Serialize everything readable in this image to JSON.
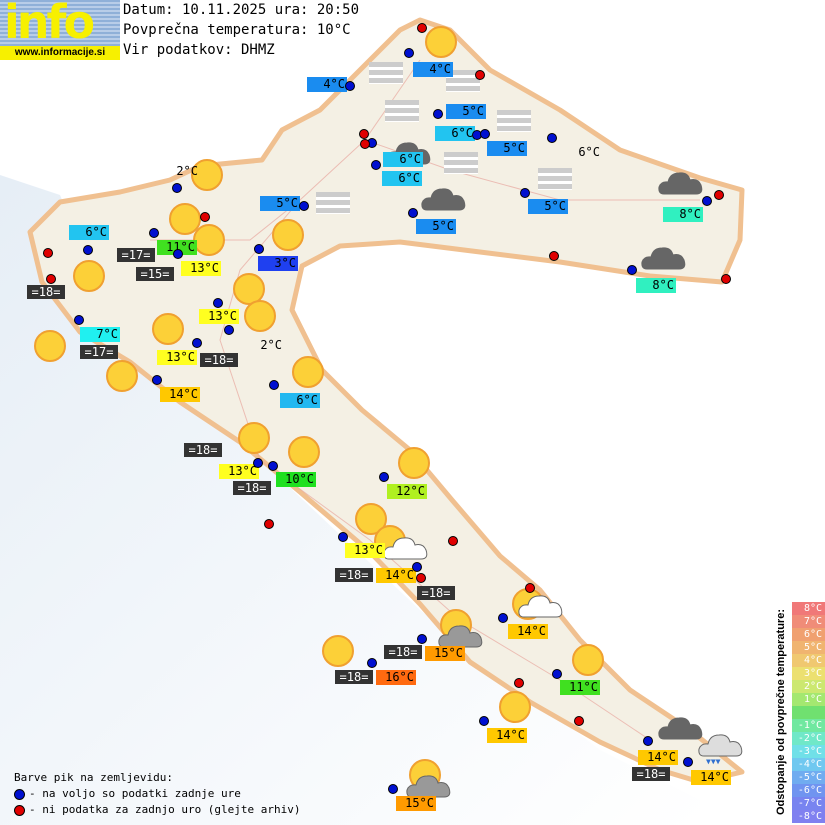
{
  "logo": {
    "text": "info",
    "url": "www.informacije.si"
  },
  "header": {
    "date_line": "Datum: 10.11.2025 ura: 20:50",
    "avg_temp_line": "Povprečna temperatura: 10°C",
    "source_line": "Vir podatkov: DHMZ"
  },
  "temperature_labels": [
    {
      "text": "4°C",
      "color": "#1a8cf0"
    },
    {
      "text": "4°C",
      "color": "#1a8cf0"
    },
    {
      "text": "5°C",
      "color": "#1a8cf0"
    },
    {
      "text": "6°C",
      "color": "#22c4f0"
    },
    {
      "text": "5°C",
      "color": "#1a8cf0"
    },
    {
      "text": "6°C",
      "color": "#22c4f0"
    },
    {
      "text": "6°C",
      "color": "#22c4f0"
    },
    {
      "text": "5°C",
      "color": "#1a8cf0"
    },
    {
      "text": "5°C",
      "color": "#1a8cf0"
    },
    {
      "text": "5°C",
      "color": "#1a8cf0"
    },
    {
      "text": "6°C",
      "color": ""
    },
    {
      "text": "8°C",
      "color": "#30f0c0"
    },
    {
      "text": "8°C",
      "color": "#30f0c0"
    },
    {
      "text": "3°C",
      "color": "#1f40f0"
    },
    {
      "text": "2°C",
      "color": ""
    },
    {
      "text": "6°C",
      "color": "#22c4f0"
    },
    {
      "text": "11°C",
      "color": "#40e020"
    },
    {
      "text": "13°C",
      "color": "#ffff20"
    },
    {
      "text": "7°C",
      "color": "#20f0f0"
    },
    {
      "text": "13°C",
      "color": "#ffff20"
    },
    {
      "text": "13°C",
      "color": "#ffff20"
    },
    {
      "text": "2°C",
      "color": ""
    },
    {
      "text": "14°C",
      "color": "#ffc800"
    },
    {
      "text": "6°C",
      "color": "#22b8f0"
    },
    {
      "text": "13°C",
      "color": "#ffff20"
    },
    {
      "text": "10°C",
      "color": "#20e020"
    },
    {
      "text": "12°C",
      "color": "#b0f020"
    },
    {
      "text": "13°C",
      "color": "#ffff20"
    },
    {
      "text": "14°C",
      "color": "#ffc800"
    },
    {
      "text": "15°C",
      "color": "#ff9a00"
    },
    {
      "text": "16°C",
      "color": "#ff6a10"
    },
    {
      "text": "14°C",
      "color": "#ffc800"
    },
    {
      "text": "11°C",
      "color": "#40e020"
    },
    {
      "text": "14°C",
      "color": "#ffc800"
    },
    {
      "text": "14°C",
      "color": "#ffc800"
    },
    {
      "text": "14°C",
      "color": "#ffc800"
    },
    {
      "text": "15°C",
      "color": "#ff9a00"
    }
  ],
  "sea_temperature_labels": [
    "=17=",
    "=15=",
    "=18=",
    "=17=",
    "=18=",
    "=18=",
    "=18=",
    "=18=",
    "=18=",
    "=18=",
    "=18=",
    "=18="
  ],
  "station_colors": {
    "available": "#0010d0",
    "missing": "#e00000"
  },
  "legend": {
    "title": "Barve pik na zemljevidu:",
    "available": "- na voljo so podatki zadnje ure",
    "missing": "- ni podatka za zadnjo uro (glejte arhiv)"
  },
  "deviation_scale": {
    "title": "Odstopanje od povprečne temperature:",
    "steps": [
      {
        "label": "8°C",
        "color": "#f07878"
      },
      {
        "label": "7°C",
        "color": "#f08c78"
      },
      {
        "label": "6°C",
        "color": "#f0a070"
      },
      {
        "label": "5°C",
        "color": "#f0b470"
      },
      {
        "label": "4°C",
        "color": "#f0c870"
      },
      {
        "label": "3°C",
        "color": "#ece070"
      },
      {
        "label": "2°C",
        "color": "#cce870"
      },
      {
        "label": "1°C",
        "color": "#a4e870"
      },
      {
        "label": "",
        "color": "#70e070"
      },
      {
        "label": "-1°C",
        "color": "#70e8a0"
      },
      {
        "label": "-2°C",
        "color": "#70e8c8"
      },
      {
        "label": "-3°C",
        "color": "#70e0e8"
      },
      {
        "label": "-4°C",
        "color": "#70c8f0"
      },
      {
        "label": "-5°C",
        "color": "#70acf0"
      },
      {
        "label": "-6°C",
        "color": "#7094f0"
      },
      {
        "label": "-7°C",
        "color": "#7884f0"
      },
      {
        "label": "-8°C",
        "color": "#8080f0"
      }
    ]
  },
  "weather_icons": {
    "sun": "sun-icon",
    "cloud": "cloud-icon",
    "partly_cloudy": "partly-cloudy-icon",
    "fog": "fog-icon",
    "rain": "rain-icon"
  }
}
